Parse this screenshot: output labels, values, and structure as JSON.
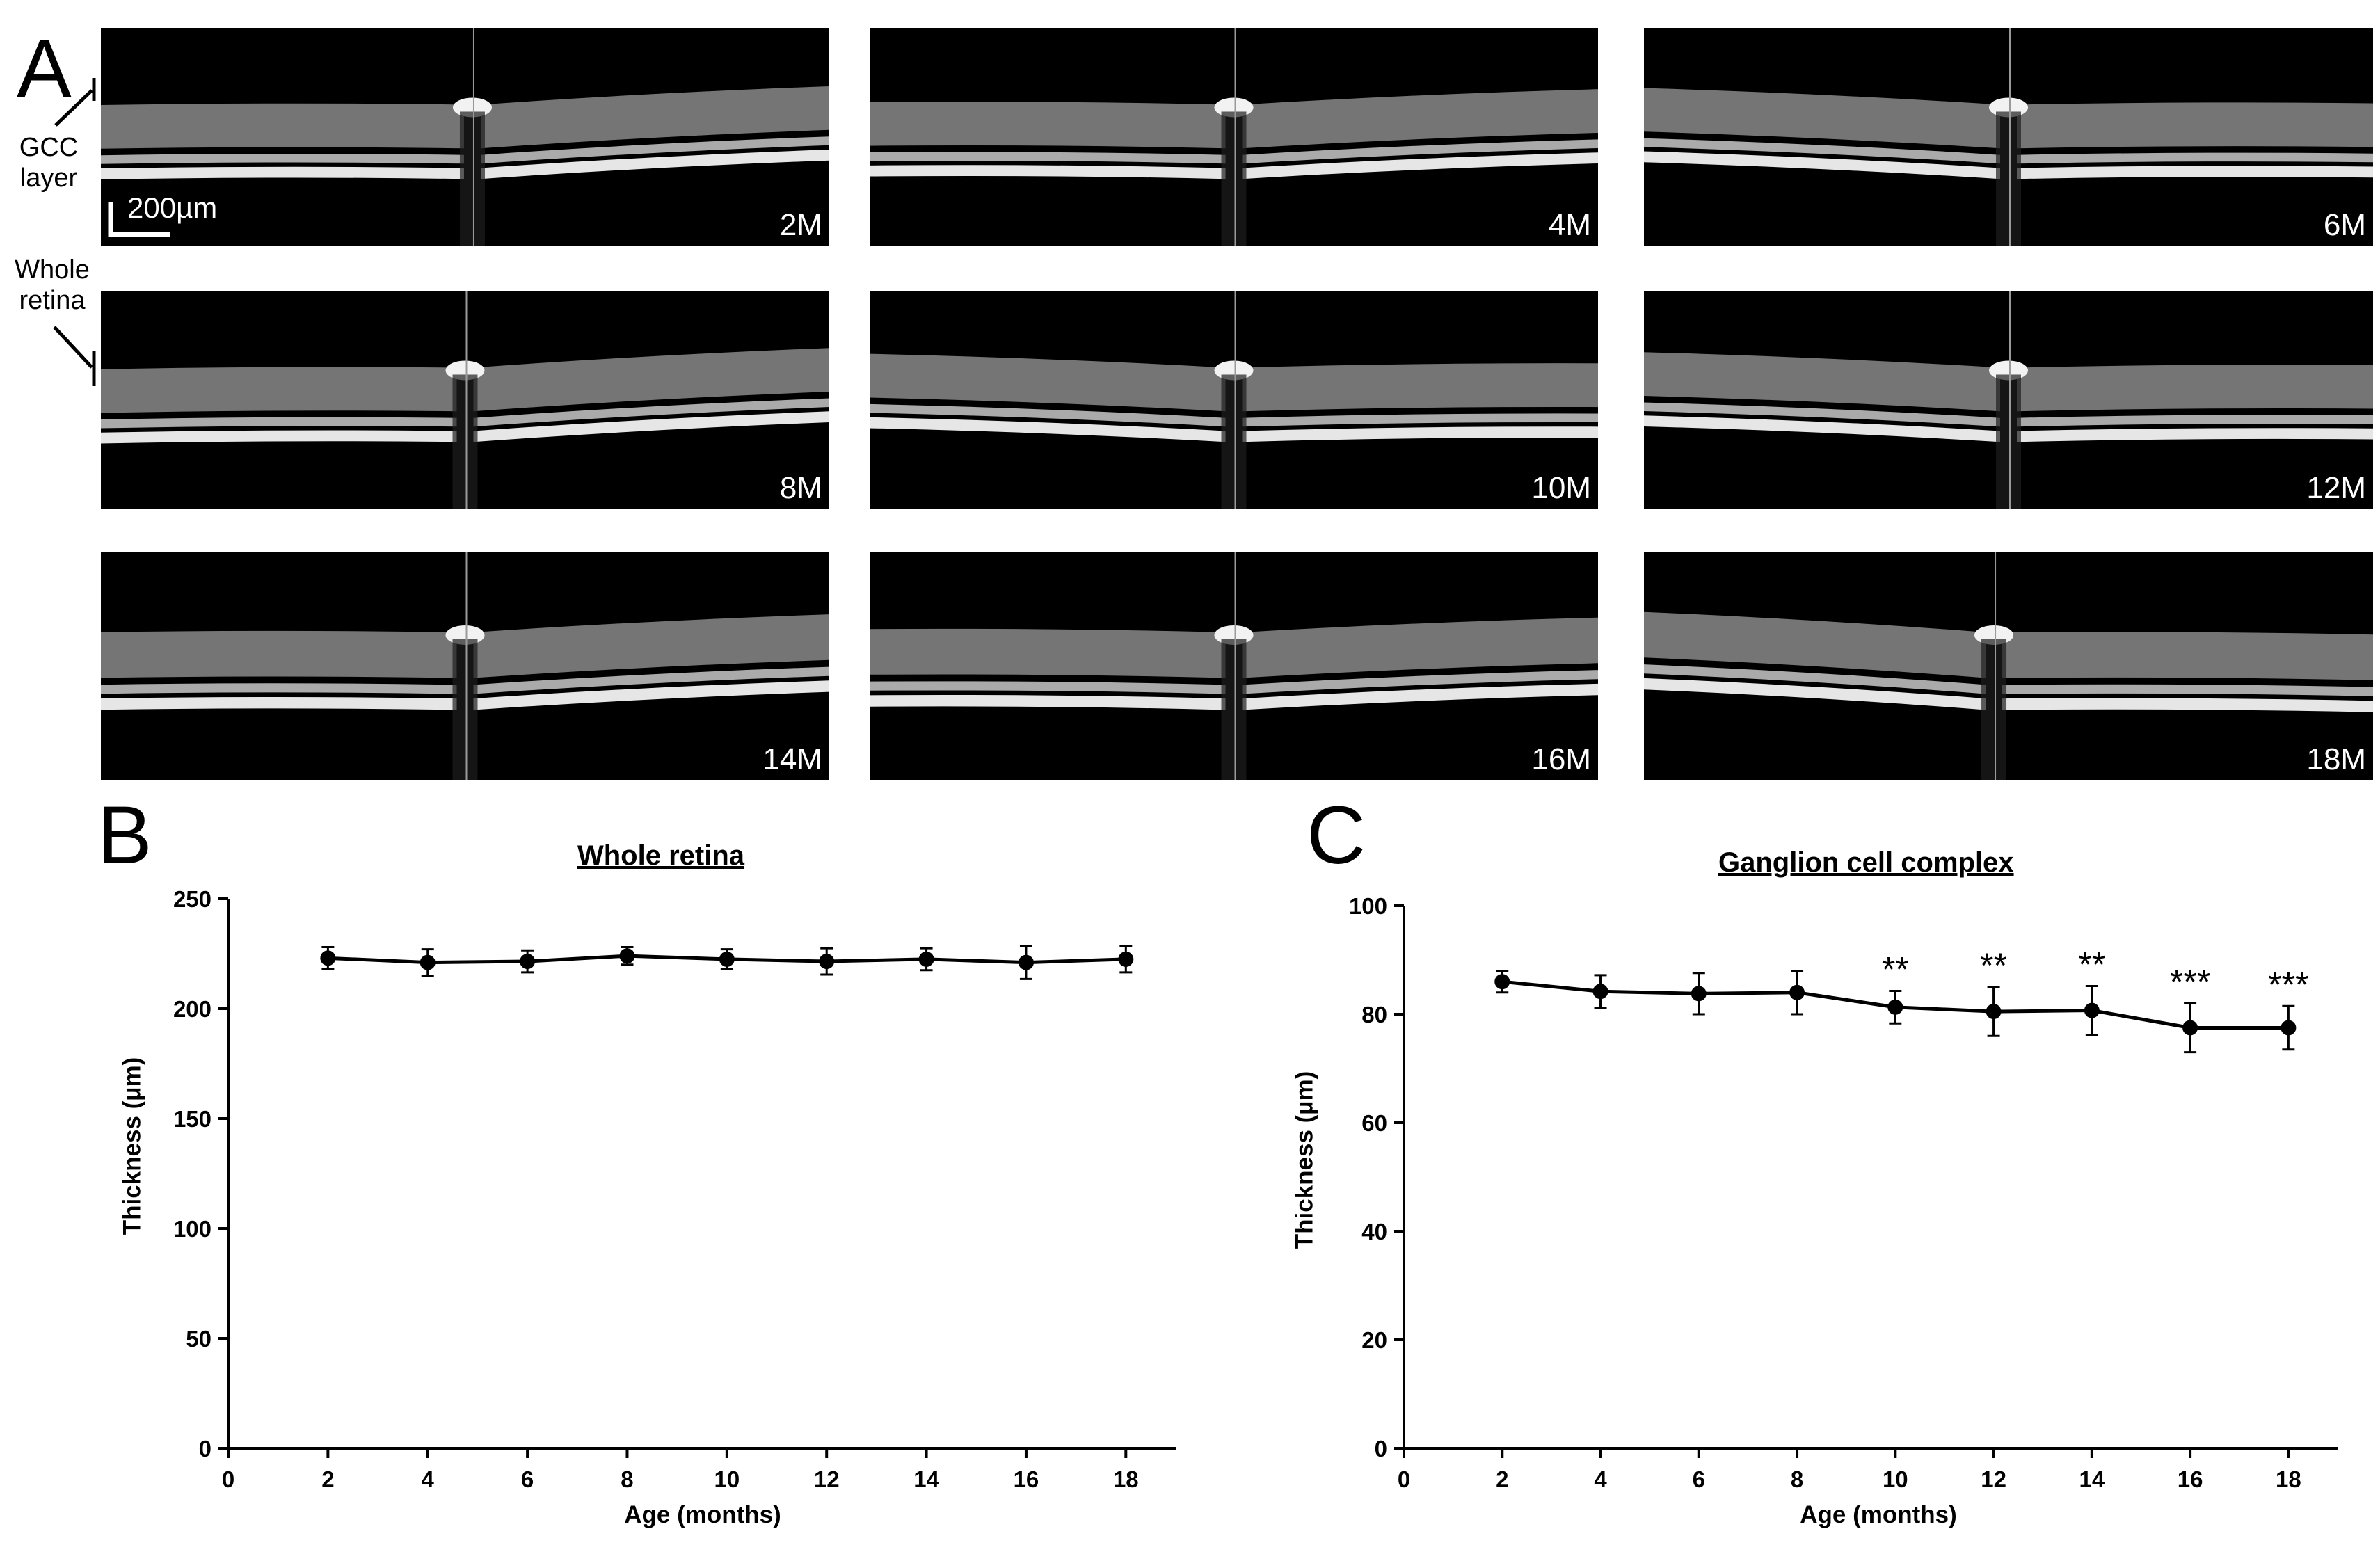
{
  "panels": {
    "a_label": "A",
    "b_label": "B",
    "c_label": "C"
  },
  "oct_images": [
    {
      "label": "2M"
    },
    {
      "label": "4M"
    },
    {
      "label": "6M"
    },
    {
      "label": "8M"
    },
    {
      "label": "10M"
    },
    {
      "label": "12M"
    },
    {
      "label": "14M"
    },
    {
      "label": "16M"
    },
    {
      "label": "18M"
    }
  ],
  "annotations": {
    "gcc_line1": "GCC",
    "gcc_line2": "layer",
    "whole_line1": "Whole",
    "whole_line2": "retina",
    "scale_bar": "200µm"
  },
  "chart_data": [
    {
      "type": "line",
      "title": "Whole retina",
      "xlabel": "Age (months)",
      "ylabel": "Thickness (µm)",
      "xlim": [
        0,
        19
      ],
      "xticks": [
        0,
        2,
        4,
        6,
        8,
        10,
        12,
        14,
        16,
        18
      ],
      "ylim": [
        0,
        250
      ],
      "yticks": [
        0,
        50,
        100,
        150,
        200,
        250
      ],
      "grid": false,
      "series": [
        {
          "x": [
            2,
            4,
            6,
            8,
            10,
            12,
            14,
            16,
            18
          ],
          "y": [
            223,
            221,
            221.5,
            224,
            222.5,
            221.5,
            222.5,
            221,
            222.5
          ],
          "error": [
            5,
            6,
            5,
            4,
            4.5,
            6,
            5,
            7.5,
            6
          ]
        }
      ],
      "significance": [
        "",
        "",
        "",
        "",
        "",
        "",
        "",
        "",
        ""
      ]
    },
    {
      "type": "line",
      "title": "Ganglion cell complex",
      "xlabel": "Age (months)",
      "ylabel": "Thickness (µm)",
      "xlim": [
        0,
        19
      ],
      "xticks": [
        0,
        2,
        4,
        6,
        8,
        10,
        12,
        14,
        16,
        18
      ],
      "ylim": [
        0,
        100
      ],
      "yticks": [
        0,
        20,
        40,
        60,
        80,
        100
      ],
      "grid": false,
      "series": [
        {
          "x": [
            2,
            4,
            6,
            8,
            10,
            12,
            14,
            16,
            18
          ],
          "y": [
            86,
            84.2,
            83.8,
            84,
            81.3,
            80.5,
            80.7,
            77.5,
            77.5
          ],
          "error": [
            2,
            3,
            3.8,
            4,
            3,
            4.5,
            4.5,
            4.5,
            4
          ]
        }
      ],
      "significance": [
        "",
        "",
        "",
        "",
        "**",
        "**",
        "**",
        "***",
        "***"
      ]
    }
  ]
}
